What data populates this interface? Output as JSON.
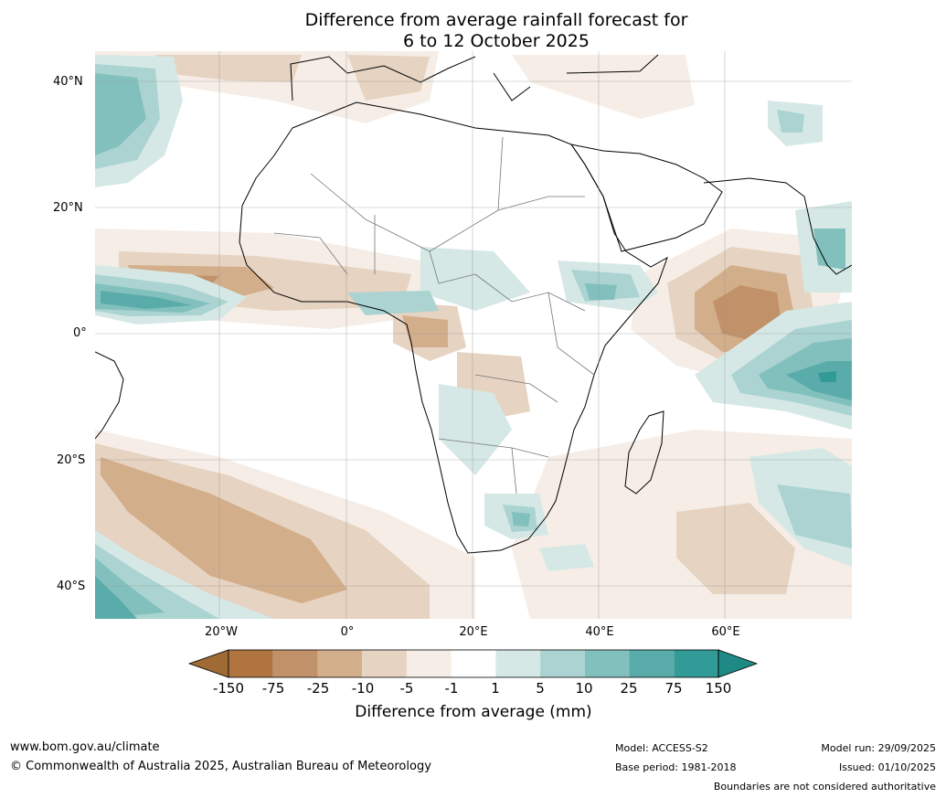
{
  "title_line1": "Difference from average rainfall forecast for",
  "title_line2": "6 to 12 October 2025",
  "lat_labels": [
    "40°N",
    "20°N",
    "0°",
    "20°S",
    "40°S"
  ],
  "lon_labels": [
    "20°W",
    "0°",
    "20°E",
    "40°E",
    "60°E"
  ],
  "colorbar": {
    "ticks": [
      "-150",
      "-75",
      "-25",
      "-10",
      "-5",
      "-1",
      "1",
      "5",
      "10",
      "25",
      "75",
      "150"
    ],
    "colors": [
      "#9f6a34",
      "#b07440",
      "#c19169",
      "#d3ae8b",
      "#e6d3c1",
      "#f5ede6",
      "#ffffff",
      "#d5e8e6",
      "#aad3d1",
      "#82c0bd",
      "#5aacaa",
      "#339b97",
      "#1f8a85"
    ],
    "label": "Difference from average (mm)"
  },
  "footer": {
    "website": "www.bom.gov.au/climate",
    "copyright": "© Commonwealth of Australia 2025, Australian Bureau of Meteorology",
    "model": "Model: ACCESS-S2",
    "base_period": "Base period: 1981-2018",
    "model_run": "Model run: 29/09/2025",
    "issued": "Issued: 01/10/2025",
    "disclaimer": "Boundaries are not considered authoritative"
  }
}
